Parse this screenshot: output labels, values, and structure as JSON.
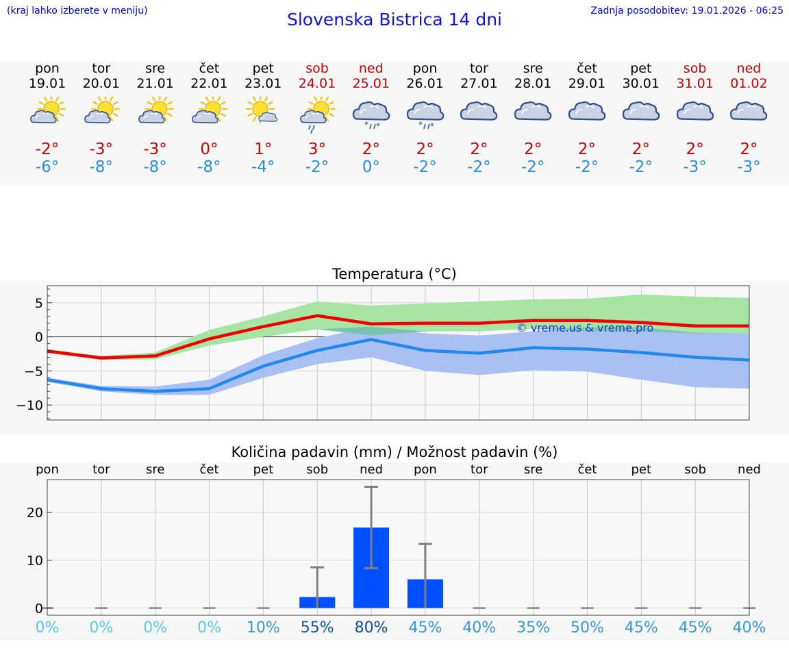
{
  "header": {
    "hint": "(kraj lahko izberete v meniju)",
    "title": "Slovenska Bistrica 14 dni",
    "updated": "Zadnja posodobitev: 19.01.2026 - 06:25"
  },
  "days": [
    {
      "name": "pon",
      "date": "19.01",
      "weekend": false,
      "icon": "sun-cloud-icon",
      "max": "-2°",
      "min": "-6°"
    },
    {
      "name": "tor",
      "date": "20.01",
      "weekend": false,
      "icon": "sun-cloud-icon",
      "max": "-3°",
      "min": "-8°"
    },
    {
      "name": "sre",
      "date": "21.01",
      "weekend": false,
      "icon": "sun-cloud-icon",
      "max": "-3°",
      "min": "-8°"
    },
    {
      "name": "čet",
      "date": "22.01",
      "weekend": false,
      "icon": "sun-cloud-icon",
      "max": "0°",
      "min": "-8°"
    },
    {
      "name": "pet",
      "date": "23.01",
      "weekend": false,
      "icon": "sun-small-cloud-icon",
      "max": "1°",
      "min": "-4°"
    },
    {
      "name": "sob",
      "date": "24.01",
      "weekend": true,
      "icon": "sun-cloud-rain-icon",
      "max": "3°",
      "min": "-2°"
    },
    {
      "name": "ned",
      "date": "25.01",
      "weekend": true,
      "icon": "cloud-sleet-icon",
      "max": "2°",
      "min": "0°"
    },
    {
      "name": "pon",
      "date": "26.01",
      "weekend": false,
      "icon": "cloud-sleet-icon",
      "max": "2°",
      "min": "-2°"
    },
    {
      "name": "tor",
      "date": "27.01",
      "weekend": false,
      "icon": "cloud-icon",
      "max": "2°",
      "min": "-2°"
    },
    {
      "name": "sre",
      "date": "28.01",
      "weekend": false,
      "icon": "cloud-icon",
      "max": "2°",
      "min": "-2°"
    },
    {
      "name": "čet",
      "date": "29.01",
      "weekend": false,
      "icon": "cloud-icon",
      "max": "2°",
      "min": "-2°"
    },
    {
      "name": "pet",
      "date": "30.01",
      "weekend": false,
      "icon": "cloud-icon",
      "max": "2°",
      "min": "-2°"
    },
    {
      "name": "sob",
      "date": "31.01",
      "weekend": true,
      "icon": "cloud-icon",
      "max": "2°",
      "min": "-3°"
    },
    {
      "name": "ned",
      "date": "01.02",
      "weekend": true,
      "icon": "cloud-icon",
      "max": "2°",
      "min": "-3°"
    }
  ],
  "colors": {
    "max_line": "#ee0000",
    "min_line": "#2288ee",
    "max_band": "#a8e4a4",
    "min_band": "#a8c0f2",
    "overlap_band": "#7cc4b0",
    "precip_bar": "#0050ff",
    "error_bar": "#808080"
  },
  "chart_data": [
    {
      "type": "line",
      "title": "Temperatura (°C)",
      "watermark": "© vreme.us & vreme.pro",
      "x": [
        0,
        1,
        2,
        3,
        4,
        5,
        6,
        7,
        8,
        9,
        10,
        11,
        12,
        13
      ],
      "ylim": [
        -12.2,
        7.5
      ],
      "yticks": [
        5,
        0,
        -5,
        -10
      ],
      "ytick_labels": [
        "5",
        "0",
        "−5",
        "−10"
      ],
      "series": [
        {
          "name": "max",
          "values": [
            -2.1,
            -3.1,
            -2.8,
            -0.3,
            1.5,
            3.1,
            1.9,
            2.0,
            2.0,
            2.4,
            2.4,
            2.1,
            1.6,
            1.6
          ]
        },
        {
          "name": "min",
          "values": [
            -6.3,
            -7.6,
            -8.0,
            -7.6,
            -4.3,
            -2.0,
            -0.4,
            -2.0,
            -2.4,
            -1.6,
            -1.8,
            -2.3,
            -3.0,
            -3.4
          ]
        }
      ],
      "bands": [
        {
          "name": "max_range",
          "low": [
            -2.3,
            -3.4,
            -3.3,
            -1.3,
            0.0,
            1.1,
            0.2,
            0.8,
            0.8,
            1.2,
            0.8,
            0.8,
            0.5,
            0.5
          ],
          "high": [
            -1.8,
            -2.8,
            -2.3,
            1.0,
            3.0,
            5.2,
            4.6,
            4.9,
            5.2,
            5.5,
            5.6,
            6.2,
            5.9,
            5.7
          ]
        },
        {
          "name": "min_range",
          "low": [
            -6.6,
            -8.0,
            -8.5,
            -8.5,
            -6.0,
            -4.0,
            -3.0,
            -5.0,
            -5.6,
            -4.9,
            -5.1,
            -6.3,
            -7.4,
            -7.6
          ]
        },
        {
          "name": "min_range_high",
          "high": [
            -6.0,
            -7.2,
            -7.3,
            -6.3,
            -2.7,
            -0.2,
            1.5,
            0.5,
            0.2,
            0.8,
            1.4,
            1.4,
            0.6,
            0.5
          ]
        }
      ]
    },
    {
      "type": "bar",
      "title": "Količina padavin (mm) / Možnost padavin (%)",
      "categories": [
        "pon",
        "tor",
        "sre",
        "čet",
        "pet",
        "sob",
        "ned",
        "pon",
        "tor",
        "sre",
        "čet",
        "pet",
        "sob",
        "ned"
      ],
      "values": [
        0,
        0,
        0,
        0,
        0,
        2.3,
        16.8,
        6.0,
        0,
        0,
        0,
        0,
        0,
        0
      ],
      "error_high": [
        0,
        0,
        0,
        0,
        0,
        8.5,
        25.3,
        13.4,
        0,
        0,
        0,
        0,
        0,
        0
      ],
      "error_low": [
        0,
        0,
        0,
        0,
        0,
        0,
        8.3,
        0,
        0,
        0,
        0,
        0,
        0,
        0
      ],
      "probability": [
        "0%",
        "0%",
        "0%",
        "0%",
        "10%",
        "55%",
        "80%",
        "45%",
        "40%",
        "35%",
        "50%",
        "45%",
        "45%",
        "40%"
      ],
      "probability_colors": [
        "#55ccee",
        "#55ccee",
        "#55ccee",
        "#55ccee",
        "#3399dd",
        "#1155aa",
        "#0a4fa0",
        "#3399dd",
        "#3399dd",
        "#3399dd",
        "#3399dd",
        "#3399dd",
        "#3399dd",
        "#3399dd"
      ],
      "ylim": [
        -1.5,
        26.8
      ],
      "yticks": [
        20,
        10,
        0
      ],
      "ytick_labels": [
        "20",
        "10",
        "0"
      ]
    }
  ]
}
